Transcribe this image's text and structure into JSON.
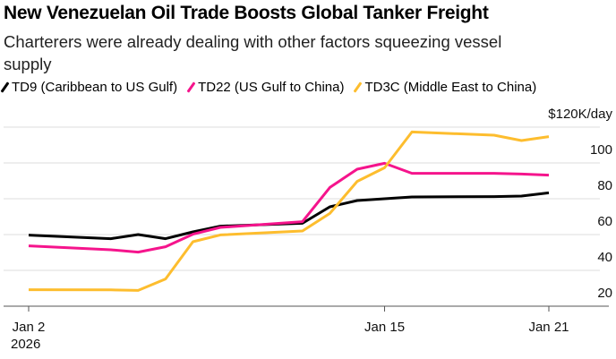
{
  "chart_data": {
    "type": "line",
    "title": "New Venezuelan Oil Trade Boosts Global Tanker Freight",
    "subtitle": "Charterers were already dealing with other factors squeezing vessel supply",
    "x": [
      "2026-01-02",
      "2026-01-05",
      "2026-01-06",
      "2026-01-07",
      "2026-01-08",
      "2026-01-09",
      "2026-01-12",
      "2026-01-13",
      "2026-01-14",
      "2026-01-15",
      "2026-01-16",
      "2026-01-19",
      "2026-01-20",
      "2026-01-21"
    ],
    "series": [
      {
        "name": "TD9 (Caribbean to US Gulf)",
        "color": "#000000",
        "values": [
          59.7,
          57.7,
          60,
          57.7,
          61.5,
          64.7,
          66.3,
          75.5,
          79,
          80,
          81,
          81.2,
          81.5,
          83.3
        ]
      },
      {
        "name": "TD22 (US Gulf to China)",
        "color": "#f5148c",
        "values": [
          53.7,
          51.5,
          50.2,
          53.2,
          60.2,
          64,
          67.2,
          86.3,
          96.5,
          99.8,
          94.2,
          94.2,
          93.8,
          93.2
        ]
      },
      {
        "name": "TD3C (Middle East to China)",
        "color": "#fdbd2e",
        "values": [
          29.2,
          29.1,
          28.8,
          35.2,
          56,
          59.8,
          62,
          71.8,
          89.7,
          97.3,
          117.3,
          115.5,
          112.5,
          114.7
        ]
      }
    ],
    "ylim": [
      20,
      120
    ],
    "yticks": [
      20,
      40,
      60,
      80,
      100,
      120
    ],
    "ytick_labels": [
      "20",
      "40",
      "60",
      "80",
      "100",
      "$120K/day"
    ],
    "xticks": [
      {
        "date": "2026-01-02",
        "label": "Jan 2",
        "sublabel": "2026"
      },
      {
        "date": "2026-01-15",
        "label": "Jan 15",
        "sublabel": ""
      },
      {
        "date": "2026-01-21",
        "label": "Jan 21",
        "sublabel": ""
      }
    ],
    "grid": true,
    "legend_position": "top"
  }
}
